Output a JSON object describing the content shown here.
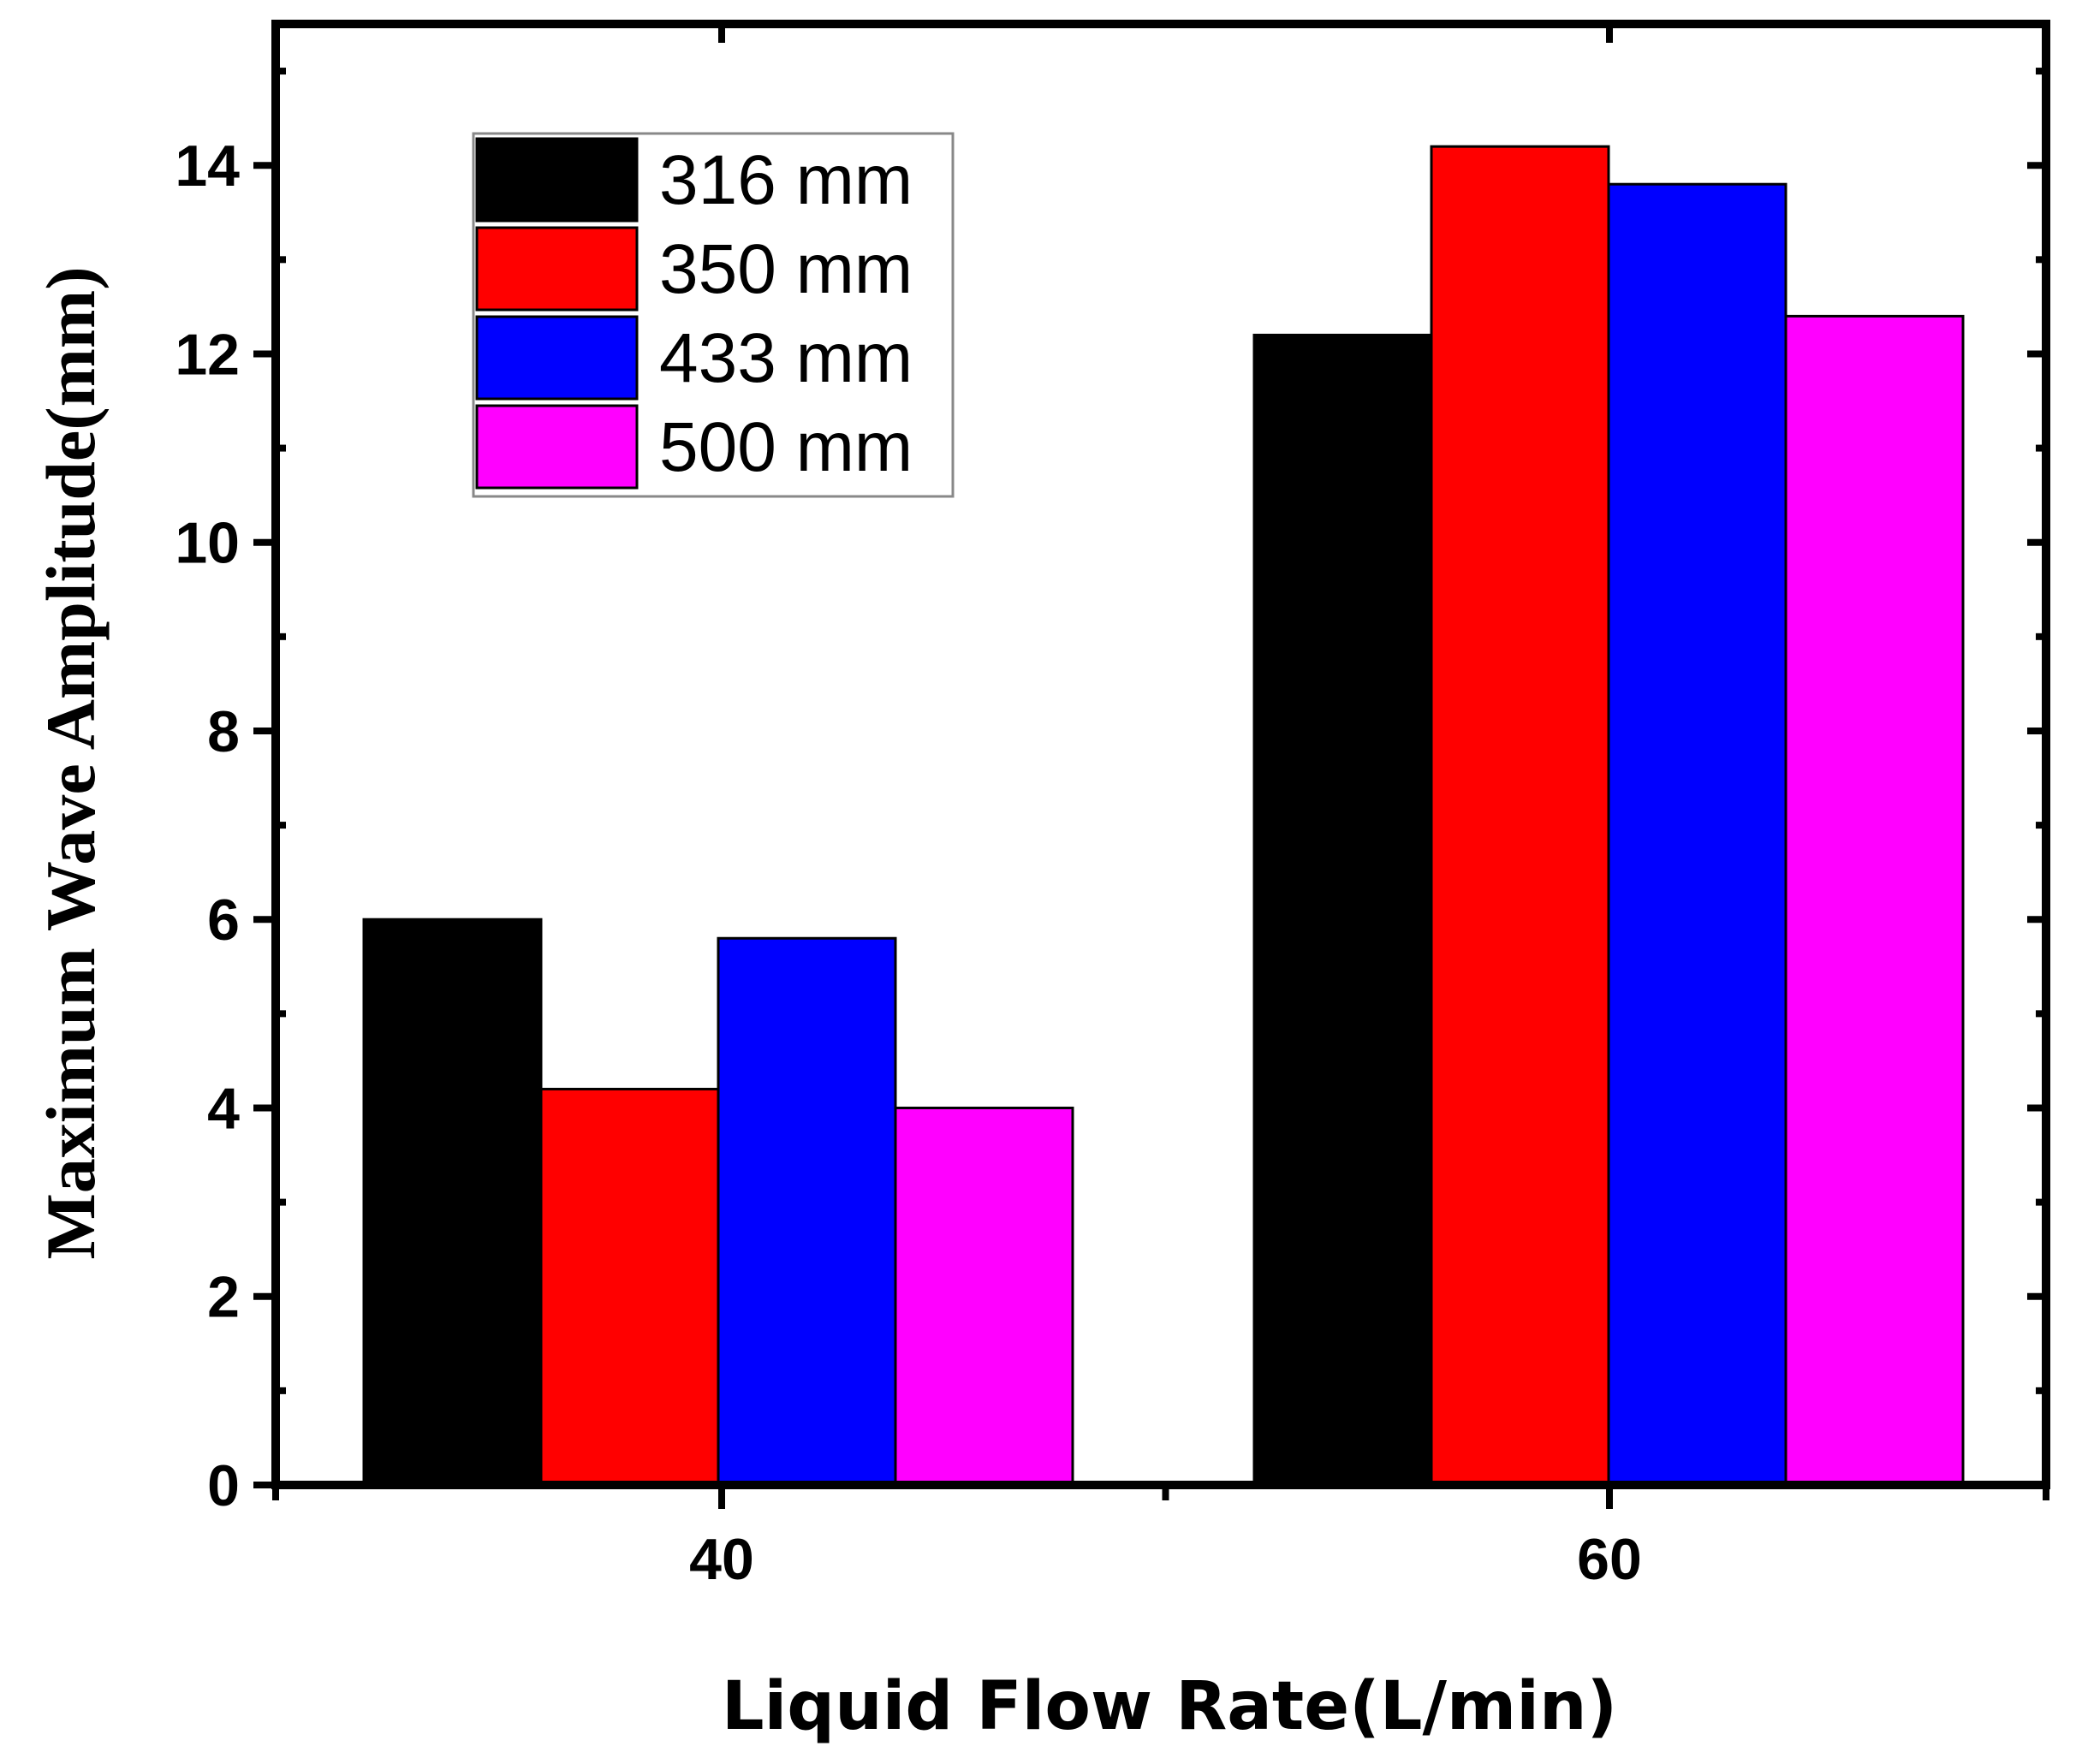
{
  "chart_data": {
    "type": "bar",
    "title": "",
    "xlabel": "Liquid Flow Rate(L/min)",
    "ylabel": "Maximum Wave Amplitude(mm)",
    "categories": [
      "40",
      "60"
    ],
    "ylim": [
      0,
      15.5
    ],
    "yticks": [
      "0",
      "2",
      "4",
      "6",
      "8",
      "10",
      "12",
      "14"
    ],
    "legend_position": "top-left",
    "grid": false,
    "series": [
      {
        "name": "316 mm",
        "color": "#000000",
        "values": [
          6.0,
          12.2
        ]
      },
      {
        "name": "350 mm",
        "color": "#ff0000",
        "values": [
          4.2,
          14.2
        ]
      },
      {
        "name": "433 mm",
        "color": "#0000ff",
        "values": [
          5.8,
          13.8
        ]
      },
      {
        "name": "500 mm",
        "color": "#ff00ff",
        "values": [
          4.0,
          12.4
        ]
      }
    ]
  }
}
